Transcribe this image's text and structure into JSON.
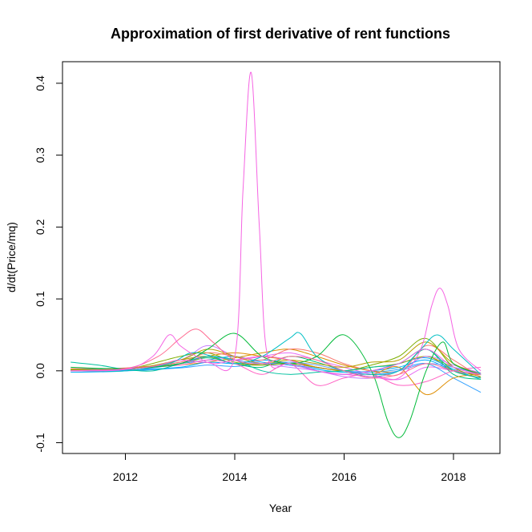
{
  "chart_data": {
    "type": "line",
    "title": "Approximation of first derivative of rent functions",
    "xlabel": "Year",
    "ylabel": "d/dt(Price/mq)",
    "xlim": [
      10.85,
      18.85
    ],
    "ylim": [
      -0.115,
      0.43
    ],
    "xticks": [
      12,
      14,
      16,
      18
    ],
    "xtick_labels": [
      "2012",
      "2014",
      "2016",
      "2018"
    ],
    "yticks": [
      -0.1,
      0.0,
      0.1,
      0.2,
      0.3,
      0.4
    ],
    "ytick_labels": [
      "-0.1",
      "0.0",
      "0.1",
      "0.2",
      "0.3",
      "0.4"
    ],
    "grid": false,
    "legend": "none",
    "series": [
      {
        "color": "#F564E3",
        "x": [
          11.0,
          12.0,
          12.5,
          12.8,
          13.0,
          13.5,
          14.0,
          14.15,
          14.3,
          14.45,
          14.6,
          15.0,
          15.5,
          16.0,
          16.5,
          17.0,
          17.4,
          17.6,
          17.75,
          17.9,
          18.1,
          18.5
        ],
        "y": [
          0.0,
          0.002,
          0.006,
          0.012,
          0.015,
          0.012,
          0.02,
          0.25,
          0.415,
          0.2,
          0.02,
          0.01,
          0.0,
          -0.005,
          -0.008,
          -0.01,
          0.03,
          0.09,
          0.115,
          0.09,
          0.03,
          0.0
        ]
      },
      {
        "color": "#F564E3",
        "x": [
          11.0,
          12.0,
          12.5,
          12.8,
          13.0,
          13.3,
          13.6,
          14.0,
          14.5,
          15.0,
          15.5,
          16.0,
          16.5,
          17.0,
          17.5,
          18.0,
          18.5
        ],
        "y": [
          0.0,
          0.002,
          0.02,
          0.05,
          0.035,
          0.02,
          0.01,
          0.015,
          0.02,
          0.015,
          0.0,
          -0.005,
          0.0,
          0.01,
          0.03,
          0.005,
          -0.005
        ]
      },
      {
        "color": "#FF6C91",
        "x": [
          11.0,
          12.0,
          12.6,
          13.0,
          13.3,
          13.6,
          14.0,
          14.5,
          15.0,
          15.5,
          16.0,
          16.5,
          17.0,
          17.5,
          18.0,
          18.5
        ],
        "y": [
          0.0,
          0.003,
          0.02,
          0.045,
          0.058,
          0.04,
          0.015,
          0.01,
          0.02,
          0.015,
          0.0,
          -0.01,
          -0.005,
          0.01,
          0.0,
          -0.005
        ]
      },
      {
        "color": "#00BA38",
        "x": [
          11.0,
          12.0,
          13.0,
          13.5,
          14.0,
          14.5,
          15.0,
          15.5,
          16.0,
          16.5,
          16.8,
          17.0,
          17.2,
          17.5,
          17.8,
          18.0,
          18.5
        ],
        "y": [
          0.005,
          0.003,
          0.01,
          0.03,
          0.052,
          0.02,
          0.01,
          0.02,
          0.05,
          0.0,
          -0.07,
          -0.093,
          -0.07,
          0.0,
          0.04,
          0.01,
          -0.005
        ]
      },
      {
        "color": "#00C19F",
        "x": [
          11.0,
          11.5,
          12.0,
          12.5,
          13.0,
          13.5,
          14.0,
          14.5,
          15.0,
          15.5,
          16.0,
          16.5,
          17.0,
          17.5,
          18.0,
          18.5
        ],
        "y": [
          0.012,
          0.008,
          0.002,
          0.0,
          0.01,
          0.02,
          0.015,
          0.0,
          -0.005,
          -0.002,
          0.0,
          0.005,
          0.01,
          0.03,
          0.0,
          -0.01
        ]
      },
      {
        "color": "#00BFC4",
        "x": [
          11.0,
          12.0,
          12.8,
          13.2,
          13.6,
          14.0,
          14.5,
          15.0,
          15.2,
          15.5,
          16.0,
          16.5,
          17.0,
          17.4,
          17.7,
          18.0,
          18.5
        ],
        "y": [
          0.0,
          0.0,
          0.01,
          0.025,
          0.02,
          0.01,
          0.02,
          0.045,
          0.052,
          0.02,
          0.0,
          -0.005,
          0.0,
          0.03,
          0.05,
          0.03,
          -0.005
        ]
      },
      {
        "color": "#619CFF",
        "x": [
          11.0,
          12.0,
          13.0,
          13.5,
          14.0,
          14.5,
          15.0,
          15.5,
          16.0,
          16.5,
          17.0,
          17.5,
          18.0,
          18.5
        ],
        "y": [
          0.0,
          0.0,
          0.01,
          0.02,
          0.015,
          0.01,
          0.012,
          0.008,
          0.0,
          -0.005,
          0.0,
          0.01,
          0.005,
          -0.005
        ]
      },
      {
        "color": "#B79F00",
        "x": [
          11.0,
          12.0,
          13.0,
          13.5,
          14.0,
          14.5,
          15.0,
          15.5,
          16.0,
          16.5,
          17.0,
          17.5,
          18.0,
          18.5
        ],
        "y": [
          0.002,
          0.002,
          0.015,
          0.03,
          0.02,
          0.01,
          0.015,
          0.01,
          0.005,
          0.012,
          0.015,
          0.04,
          0.01,
          -0.005
        ]
      },
      {
        "color": "#F8766D",
        "x": [
          11.0,
          12.0,
          13.0,
          13.5,
          14.0,
          14.5,
          15.0,
          15.5,
          16.0,
          16.5,
          17.0,
          17.5,
          18.0,
          18.5
        ],
        "y": [
          0.003,
          0.004,
          0.012,
          0.025,
          0.02,
          0.015,
          0.03,
          0.025,
          0.01,
          0.0,
          -0.005,
          0.035,
          0.015,
          -0.01
        ]
      },
      {
        "color": "#DE8C00",
        "x": [
          11.0,
          12.0,
          13.0,
          13.5,
          14.0,
          14.5,
          15.0,
          15.5,
          16.0,
          16.5,
          17.0,
          17.5,
          18.0,
          18.5
        ],
        "y": [
          0.0,
          0.003,
          0.01,
          0.02,
          0.025,
          0.02,
          0.015,
          0.005,
          0.0,
          -0.005,
          0.005,
          -0.033,
          -0.01,
          -0.005
        ]
      },
      {
        "color": "#7CAE00",
        "x": [
          11.0,
          12.0,
          13.0,
          13.5,
          14.0,
          14.5,
          15.0,
          15.5,
          16.0,
          16.5,
          17.0,
          17.5,
          18.0,
          18.5
        ],
        "y": [
          0.001,
          0.002,
          0.02,
          0.025,
          0.012,
          0.008,
          0.01,
          0.005,
          0.0,
          0.008,
          0.02,
          0.045,
          0.005,
          -0.008
        ]
      },
      {
        "color": "#00A9FF",
        "x": [
          11.0,
          12.0,
          13.0,
          13.5,
          14.0,
          14.5,
          15.0,
          15.5,
          16.0,
          16.5,
          17.0,
          17.5,
          18.0,
          18.5
        ],
        "y": [
          0.0,
          0.001,
          0.005,
          0.012,
          0.01,
          0.015,
          0.01,
          0.0,
          -0.005,
          0.0,
          0.005,
          0.015,
          0.0,
          -0.005
        ]
      },
      {
        "color": "#C77CFF",
        "x": [
          11.0,
          12.0,
          13.0,
          13.5,
          14.0,
          14.5,
          15.0,
          15.5,
          16.0,
          16.5,
          17.0,
          17.5,
          18.0,
          18.5
        ],
        "y": [
          0.0,
          0.002,
          0.015,
          0.035,
          0.02,
          0.01,
          0.005,
          0.0,
          -0.008,
          -0.01,
          0.0,
          0.02,
          0.008,
          -0.003
        ]
      },
      {
        "color": "#FF61C3",
        "x": [
          11.0,
          12.0,
          13.0,
          13.5,
          14.0,
          14.5,
          15.0,
          15.5,
          16.0,
          16.5,
          17.0,
          17.5,
          18.0,
          18.5
        ],
        "y": [
          0.0,
          0.003,
          0.008,
          0.015,
          0.01,
          -0.005,
          0.01,
          -0.02,
          -0.01,
          -0.005,
          -0.02,
          -0.015,
          0.0,
          0.005
        ]
      },
      {
        "color": "#00BF7D",
        "x": [
          11.0,
          12.0,
          13.0,
          13.5,
          14.0,
          14.5,
          15.0,
          15.5,
          16.0,
          16.5,
          17.0,
          17.5,
          18.0,
          18.5
        ],
        "y": [
          0.002,
          0.003,
          0.01,
          0.018,
          0.01,
          0.005,
          0.02,
          0.012,
          0.0,
          -0.008,
          0.0,
          0.03,
          -0.005,
          -0.012
        ]
      },
      {
        "color": "#35A2FF",
        "x": [
          11.0,
          12.0,
          13.0,
          13.5,
          14.0,
          14.5,
          15.0,
          15.5,
          16.0,
          16.5,
          17.0,
          17.5,
          18.0,
          18.5
        ],
        "y": [
          0.0,
          0.0,
          0.004,
          0.008,
          0.006,
          0.01,
          0.008,
          0.004,
          0.0,
          -0.002,
          0.002,
          0.01,
          -0.01,
          -0.03
        ]
      },
      {
        "color": "#E76BF3",
        "x": [
          11.0,
          12.0,
          13.0,
          13.5,
          14.0,
          14.5,
          15.0,
          15.5,
          16.0,
          16.5,
          17.0,
          17.5,
          18.0,
          18.5
        ],
        "y": [
          0.0,
          0.002,
          0.012,
          0.02,
          0.015,
          0.02,
          0.025,
          0.015,
          0.005,
          -0.005,
          -0.012,
          0.005,
          0.0,
          -0.005
        ]
      },
      {
        "color": "#A3A500",
        "x": [
          11.0,
          12.0,
          13.0,
          13.5,
          14.0,
          14.5,
          15.0,
          15.5,
          16.0,
          16.5,
          17.0,
          17.5,
          18.0,
          18.5
        ],
        "y": [
          0.001,
          0.001,
          0.015,
          0.02,
          0.01,
          0.008,
          0.012,
          0.005,
          0.0,
          0.005,
          0.01,
          0.02,
          0.005,
          -0.003
        ]
      },
      {
        "color": "#00B0F6",
        "x": [
          11.0,
          12.0,
          13.0,
          13.5,
          14.0,
          14.5,
          15.0,
          15.5,
          16.0,
          16.5,
          17.0,
          17.5,
          18.0,
          18.5
        ],
        "y": [
          -0.002,
          0.0,
          0.01,
          0.015,
          0.02,
          0.012,
          0.008,
          0.002,
          -0.002,
          0.0,
          0.01,
          0.018,
          0.002,
          -0.012
        ]
      },
      {
        "color": "#D89000",
        "x": [
          11.0,
          12.0,
          13.0,
          13.5,
          14.0,
          14.5,
          15.0,
          15.5,
          16.0,
          16.5,
          17.0,
          17.5,
          18.0,
          18.5
        ],
        "y": [
          0.002,
          0.003,
          0.008,
          0.012,
          0.018,
          0.025,
          0.03,
          0.02,
          0.008,
          0.0,
          0.0,
          0.02,
          0.0,
          -0.01
        ]
      }
    ]
  }
}
